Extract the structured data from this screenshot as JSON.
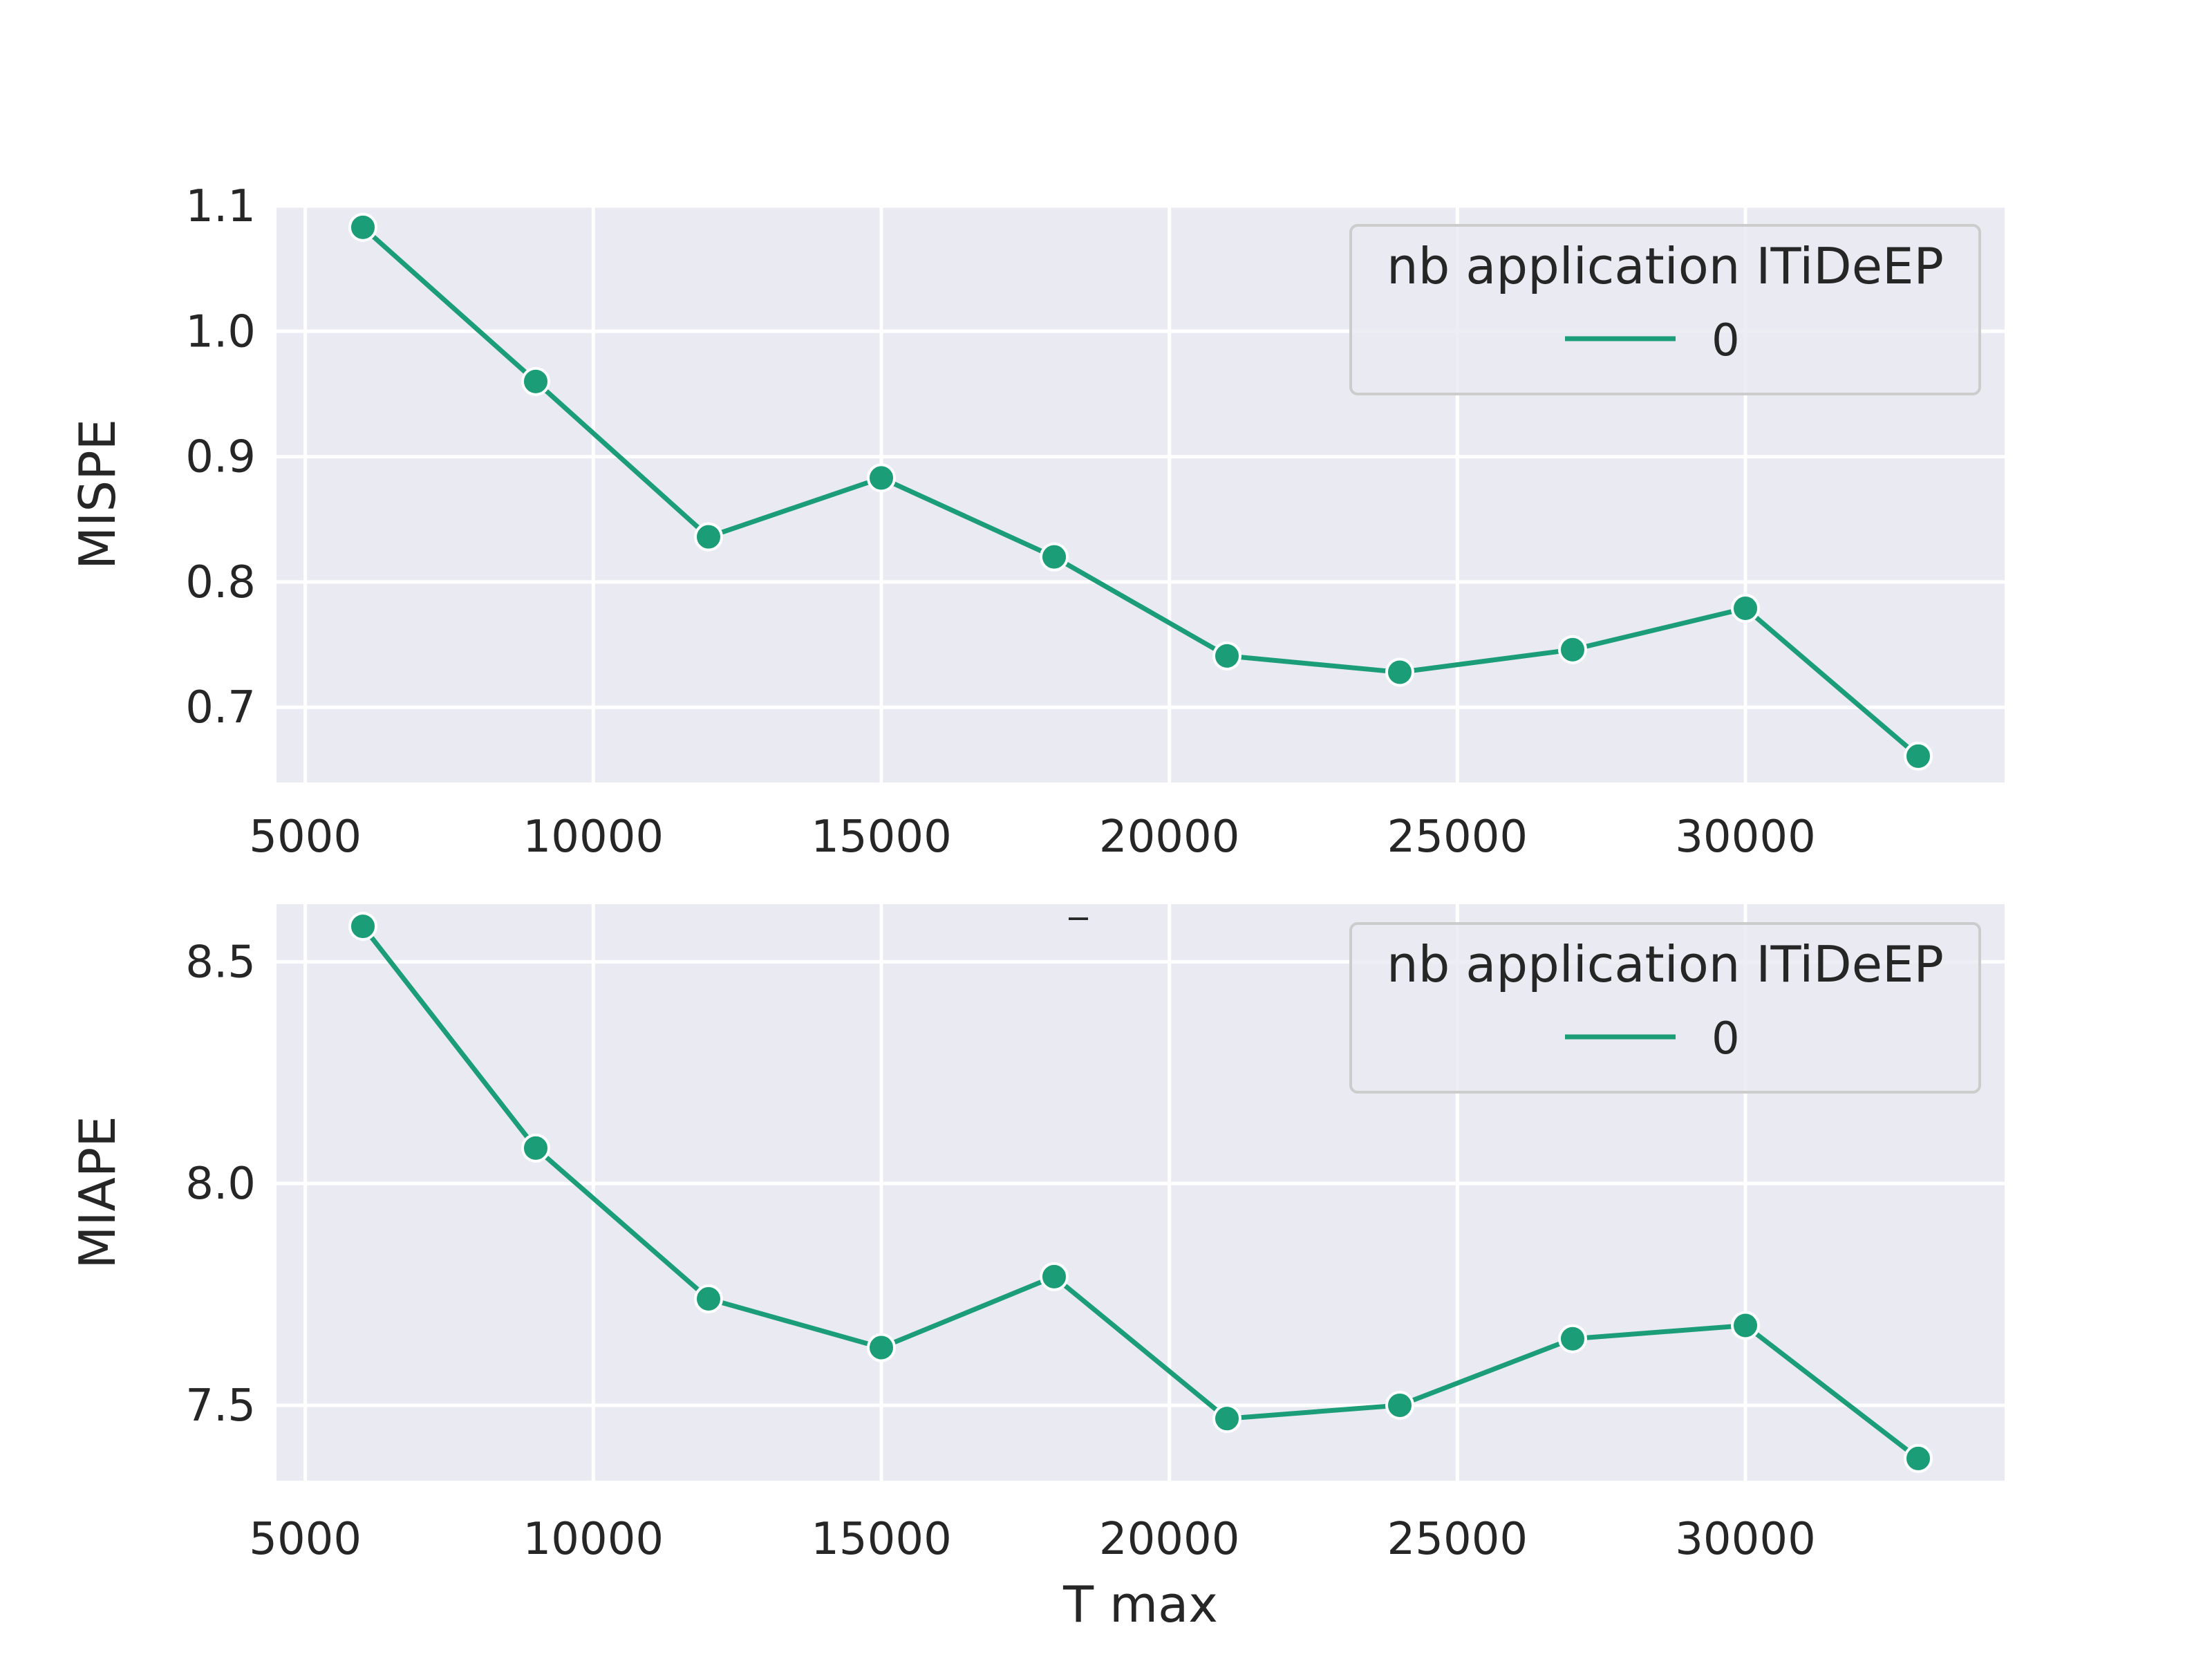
{
  "figure": {
    "background": "#ffffff",
    "plot_background": "#eaeaf2",
    "grid_color": "#ffffff",
    "series_color": "#1b9e77",
    "marker_edge_color": "#ffffff",
    "legend_face": "#eaeaf2",
    "legend_edge": "#cccccc",
    "stray_label": "_"
  },
  "chart_data": [
    {
      "type": "line",
      "title": "",
      "xlabel": "",
      "ylabel": "MISPE",
      "xlim": [
        4500,
        34500
      ],
      "ylim": [
        0.64,
        1.1
      ],
      "x_ticks": [
        5000,
        10000,
        15000,
        20000,
        25000,
        30000
      ],
      "y_ticks": [
        0.7,
        0.8,
        0.9,
        1.0,
        1.1
      ],
      "y_tick_labels": [
        "0.7",
        "0.8",
        "0.9",
        "1.0",
        "1.1"
      ],
      "grid": true,
      "legend": {
        "title": "nb application ITiDeEP",
        "placement": "top-right"
      },
      "series": [
        {
          "name": "0",
          "x": [
            6000,
            9000,
            12000,
            15000,
            18000,
            21000,
            24000,
            27000,
            30000,
            33000
          ],
          "y": [
            1.083,
            0.96,
            0.836,
            0.883,
            0.82,
            0.741,
            0.728,
            0.746,
            0.779,
            0.661
          ]
        }
      ]
    },
    {
      "type": "line",
      "title": "",
      "xlabel": "T max",
      "ylabel": "MIAPE",
      "xlim": [
        4500,
        34500
      ],
      "ylim": [
        7.33,
        8.63
      ],
      "x_ticks": [
        5000,
        10000,
        15000,
        20000,
        25000,
        30000
      ],
      "y_ticks": [
        7.5,
        8.0,
        8.5
      ],
      "y_tick_labels": [
        "7.5",
        "8.0",
        "8.5"
      ],
      "grid": true,
      "legend": {
        "title": "nb application ITiDeEP",
        "placement": "top-right"
      },
      "series": [
        {
          "name": "0",
          "x": [
            6000,
            9000,
            12000,
            15000,
            18000,
            21000,
            24000,
            27000,
            30000,
            33000
          ],
          "y": [
            8.58,
            8.08,
            7.74,
            7.63,
            7.79,
            7.47,
            7.5,
            7.65,
            7.68,
            7.38
          ]
        }
      ]
    }
  ]
}
